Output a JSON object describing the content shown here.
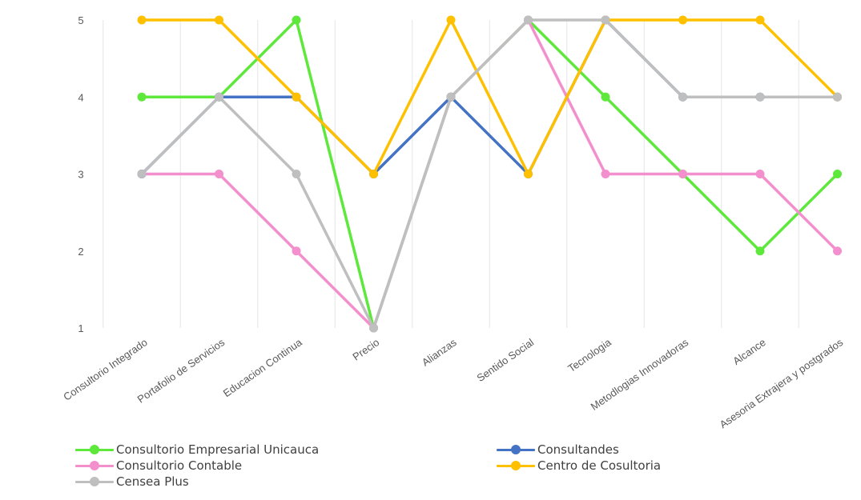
{
  "chart_data": {
    "type": "line",
    "title": "",
    "xlabel": "",
    "ylabel": "",
    "ylim": [
      1,
      5
    ],
    "yticks": [
      "1",
      "2",
      "3",
      "4",
      "5"
    ],
    "grid": "vertical",
    "legend_position": "bottom",
    "categories": [
      "Consultorio Integrado",
      "Portafolio de Servicios",
      "Educacion Continua",
      "Precio",
      "Alianzas",
      "Sentido Social",
      "Tecnologia",
      "Metodlogias Innovadoras",
      "Alcance",
      "Asesoria Extrajera y postgrados"
    ],
    "series": [
      {
        "name": "Consultorio Empresarial Unicauca",
        "color": "#5ee83c",
        "values": [
          4,
          4,
          5,
          1,
          4,
          5,
          4,
          3,
          2,
          3
        ]
      },
      {
        "name": "Consultorio Contable",
        "color": "#f48fce",
        "values": [
          3,
          3,
          2,
          1,
          4,
          5,
          3,
          3,
          3,
          2
        ]
      },
      {
        "name": "Consultandes",
        "color": "#4472c4",
        "values": [
          3,
          4,
          4,
          3,
          4,
          3,
          5,
          4,
          4,
          4
        ]
      },
      {
        "name": "Centro de Cosultoria",
        "color": "#ffc000",
        "values": [
          5,
          5,
          4,
          3,
          5,
          3,
          5,
          5,
          5,
          4
        ]
      },
      {
        "name": "Censea Plus",
        "color": "#bfbfbf",
        "values": [
          3,
          4,
          3,
          1,
          4,
          5,
          5,
          4,
          4,
          4
        ]
      }
    ]
  }
}
